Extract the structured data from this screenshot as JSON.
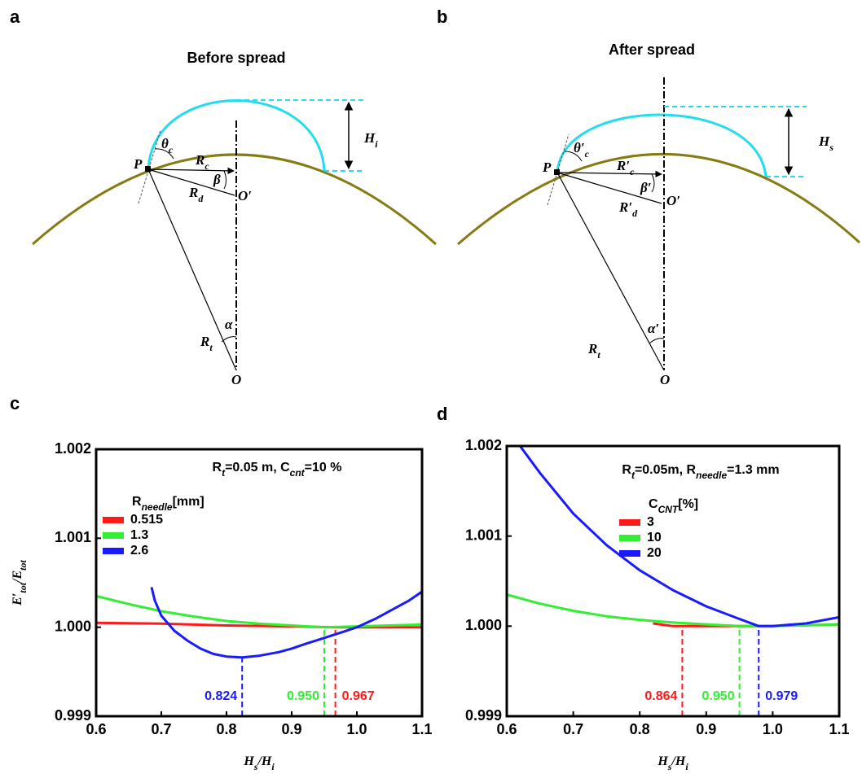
{
  "panel_labels": [
    "a",
    "b",
    "c",
    "d"
  ],
  "diagrams": [
    {
      "title": "Before spread",
      "labels": [
        {
          "text": "P"
        },
        {
          "text": "θ",
          "sub": "c"
        },
        {
          "text": "R",
          "sub": "c"
        },
        {
          "text": "β"
        },
        {
          "text": "R",
          "sub": "d"
        },
        {
          "text": "O′"
        },
        {
          "text": "H",
          "sub": "i"
        },
        {
          "text": "R",
          "sub": "t"
        },
        {
          "text": "α"
        },
        {
          "text": "O"
        }
      ]
    },
    {
      "title": "After spread",
      "labels": [
        {
          "text": "P"
        },
        {
          "text": "θ′",
          "sub": "c"
        },
        {
          "text": "R′",
          "sub": "c"
        },
        {
          "text": "β′"
        },
        {
          "text": "R′",
          "sub": "d"
        },
        {
          "text": "O′"
        },
        {
          "text": "H",
          "sub": "s"
        },
        {
          "text": "R",
          "sub": "t"
        },
        {
          "text": "α′"
        },
        {
          "text": "O"
        }
      ]
    }
  ],
  "chart_data": [
    {
      "type": "line",
      "annotation": [
        {
          "text": "R"
        },
        {
          "text": "t",
          "sub": true
        },
        {
          "text": "=0.05 m, "
        },
        {
          "text": "C"
        },
        {
          "text": "cnt",
          "sub": true
        },
        {
          "text": "=10 %"
        }
      ],
      "legend_title": [
        {
          "text": "R"
        },
        {
          "text": "needle",
          "sub": true
        },
        {
          "text": "[mm]"
        }
      ],
      "ylabel": [
        {
          "text": "E′"
        },
        {
          "text": "tot",
          "sub": true
        },
        {
          "text": "/E"
        },
        {
          "text": "tot",
          "sub": true
        }
      ],
      "xlabel": [
        {
          "text": "H"
        },
        {
          "text": "s",
          "sub": true
        },
        {
          "text": "/H"
        },
        {
          "text": "i",
          "sub": true
        }
      ],
      "xlim": [
        0.6,
        1.1
      ],
      "xticks": [
        0.6,
        0.7,
        0.8,
        0.9,
        {
          "value": 1,
          "label": "1.0"
        },
        1.1
      ],
      "ylim": [
        0.999,
        1.002
      ],
      "yticks": [
        0.999,
        {
          "value": 1,
          "label": "1.000"
        },
        1.001,
        1.002
      ],
      "series": [
        {
          "name": "0.515",
          "color": "#ff1a1a",
          "x": [
            0.6,
            0.7,
            0.8,
            0.9,
            0.967,
            1.0,
            1.1
          ],
          "values": [
            1.00005,
            1.00004,
            1.00002,
            1.00001,
            1.0,
            1.0,
            1.0
          ]
        },
        {
          "name": "1.3",
          "color": "#33ee33",
          "x": [
            0.6,
            0.65,
            0.7,
            0.75,
            0.8,
            0.85,
            0.9,
            0.95,
            1.0,
            1.05,
            1.1
          ],
          "values": [
            1.00035,
            1.00026,
            1.00018,
            1.00012,
            1.00007,
            1.00004,
            1.00002,
            1.0,
            1.00001,
            1.00002,
            1.00003
          ]
        },
        {
          "name": "2.6",
          "color": "#1a1aff",
          "x": [
            0.685,
            0.69,
            0.7,
            0.72,
            0.74,
            0.76,
            0.78,
            0.8,
            0.824,
            0.85,
            0.88,
            0.9,
            0.92,
            0.95,
            0.98,
            1.0,
            1.03,
            1.06,
            1.08,
            1.1
          ],
          "values": [
            1.00045,
            1.0003,
            1.00013,
            0.99996,
            0.99985,
            0.99976,
            0.9997,
            0.99967,
            0.99966,
            0.99968,
            0.99972,
            0.99976,
            0.99981,
            0.99988,
            0.99995,
            1.0,
            1.0001,
            1.00022,
            1.0003,
            1.0004
          ]
        }
      ],
      "minima": [
        {
          "x": 0.824,
          "y": 0.99966,
          "label": "0.824",
          "color": "#1a1aff"
        },
        {
          "x": 0.95,
          "y": 1.0,
          "label": "0.950",
          "color": "#33ee33"
        },
        {
          "x": 0.967,
          "y": 1.0,
          "label": "0.967",
          "color": "#ff1a1a"
        }
      ]
    },
    {
      "type": "line",
      "annotation": [
        {
          "text": "R"
        },
        {
          "text": "t",
          "sub": true
        },
        {
          "text": "=0.05m, "
        },
        {
          "text": "R"
        },
        {
          "text": "needle",
          "sub": true
        },
        {
          "text": "=1.3 mm"
        }
      ],
      "legend_title": [
        {
          "text": "C"
        },
        {
          "text": "CNT",
          "sub": true
        },
        {
          "text": "[%]"
        }
      ],
      "xlabel": [
        {
          "text": "H"
        },
        {
          "text": "s",
          "sub": true
        },
        {
          "text": "/H"
        },
        {
          "text": "i",
          "sub": true
        }
      ],
      "xlim": [
        0.6,
        1.1
      ],
      "xticks": [
        0.6,
        0.7,
        0.8,
        0.9,
        {
          "value": 1,
          "label": "1.0"
        },
        1.1
      ],
      "ylim": [
        0.999,
        1.002
      ],
      "yticks": [
        0.999,
        {
          "value": 1,
          "label": "1.000"
        },
        1.001,
        1.002
      ],
      "series": [
        {
          "name": "3",
          "color": "#ff1a1a",
          "x": [
            0.82,
            0.85,
            0.864,
            0.9,
            0.95,
            1.0,
            1.05,
            1.1
          ],
          "values": [
            1.00003,
            1.0,
            1.0,
            1.0,
            1.0,
            1.0,
            1.00001,
            1.00002
          ]
        },
        {
          "name": "10",
          "color": "#33ee33",
          "x": [
            0.6,
            0.65,
            0.7,
            0.75,
            0.8,
            0.85,
            0.9,
            0.95,
            1.0,
            1.05,
            1.1
          ],
          "values": [
            1.00035,
            1.00025,
            1.00017,
            1.00011,
            1.00007,
            1.00004,
            1.00002,
            1.0,
            1.0,
            1.00001,
            1.00002
          ]
        },
        {
          "name": "20",
          "color": "#1a1aff",
          "x": [
            0.62,
            0.65,
            0.7,
            0.75,
            0.8,
            0.85,
            0.9,
            0.95,
            0.979,
            1.0,
            1.05,
            1.1
          ],
          "values": [
            1.002,
            1.0017,
            1.00125,
            1.0009,
            1.00062,
            1.0004,
            1.00022,
            1.00008,
            1.0,
            1.0,
            1.00003,
            1.0001
          ]
        }
      ],
      "minima": [
        {
          "x": 0.864,
          "y": 1.0,
          "label": "0.864",
          "color": "#ff1a1a"
        },
        {
          "x": 0.95,
          "y": 1.0,
          "label": "0.950",
          "color": "#33ee33"
        },
        {
          "x": 0.979,
          "y": 1.0,
          "label": "0.979",
          "color": "#1a1aff"
        }
      ]
    }
  ]
}
